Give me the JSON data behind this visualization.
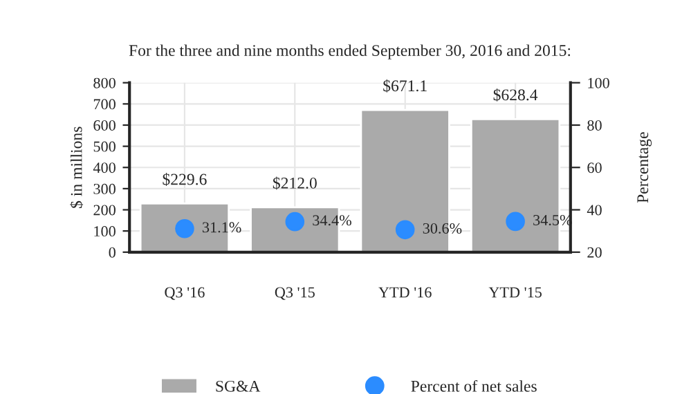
{
  "chart_data": {
    "type": "bar",
    "title": "For the three and nine months ended September 30, 2016 and 2015:",
    "ylabel": "$ in millions",
    "y2label": "Percentage",
    "categories": [
      "Q3 '16",
      "Q3 '15",
      "YTD '16",
      "YTD '15"
    ],
    "series": [
      {
        "name": "SG&A",
        "type": "bar",
        "color": "#aaaaaa",
        "values": [
          229.6,
          212.0,
          671.1,
          628.4
        ],
        "value_labels": [
          "$229.6",
          "$212.0",
          "$671.1",
          "$628.4"
        ]
      },
      {
        "name": "Percent of net sales",
        "type": "scatter",
        "axis": "y2",
        "color": "#2b8cff",
        "values": [
          31.1,
          34.4,
          30.6,
          34.5
        ],
        "value_labels": [
          "31.1%",
          "34.4%",
          "30.6%",
          "34.5%"
        ]
      }
    ],
    "ylim": [
      0,
      800
    ],
    "yticks": [
      0,
      100,
      200,
      300,
      400,
      500,
      600,
      700,
      800
    ],
    "y2lim": [
      20,
      100
    ],
    "y2ticks": [
      20,
      40,
      60,
      80,
      100
    ],
    "grid": true,
    "legend": "bottom",
    "marker": "circle"
  }
}
